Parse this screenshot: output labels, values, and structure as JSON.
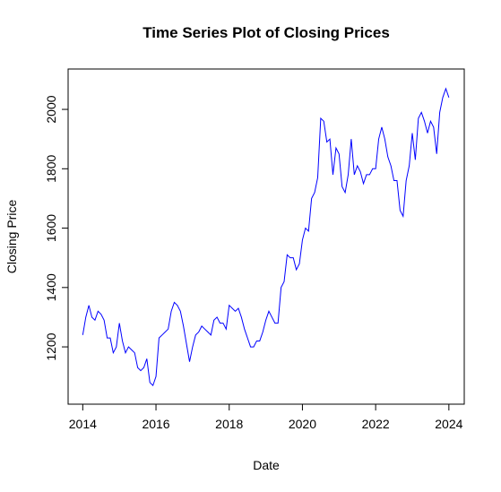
{
  "chart_data": {
    "type": "line",
    "title": "Time Series Plot of Closing Prices",
    "x_label": "Date",
    "y_label": "Closing Price",
    "x": [
      2014.0,
      2014.083,
      2014.167,
      2014.25,
      2014.333,
      2014.417,
      2014.5,
      2014.583,
      2014.667,
      2014.75,
      2014.833,
      2014.917,
      2015.0,
      2015.083,
      2015.167,
      2015.25,
      2015.333,
      2015.417,
      2015.5,
      2015.583,
      2015.667,
      2015.75,
      2015.833,
      2015.917,
      2016.0,
      2016.083,
      2016.167,
      2016.25,
      2016.333,
      2016.417,
      2016.5,
      2016.583,
      2016.667,
      2016.75,
      2016.833,
      2016.917,
      2017.0,
      2017.083,
      2017.167,
      2017.25,
      2017.333,
      2017.417,
      2017.5,
      2017.583,
      2017.667,
      2017.75,
      2017.833,
      2017.917,
      2018.0,
      2018.083,
      2018.167,
      2018.25,
      2018.333,
      2018.417,
      2018.5,
      2018.583,
      2018.667,
      2018.75,
      2018.833,
      2018.917,
      2019.0,
      2019.083,
      2019.167,
      2019.25,
      2019.333,
      2019.417,
      2019.5,
      2019.583,
      2019.667,
      2019.75,
      2019.833,
      2019.917,
      2020.0,
      2020.083,
      2020.167,
      2020.25,
      2020.333,
      2020.417,
      2020.5,
      2020.583,
      2020.667,
      2020.75,
      2020.833,
      2020.917,
      2021.0,
      2021.083,
      2021.167,
      2021.25,
      2021.333,
      2021.417,
      2021.5,
      2021.583,
      2021.667,
      2021.75,
      2021.833,
      2021.917,
      2022.0,
      2022.083,
      2022.167,
      2022.25,
      2022.333,
      2022.417,
      2022.5,
      2022.583,
      2022.667,
      2022.75,
      2022.833,
      2022.917,
      2023.0,
      2023.083,
      2023.167,
      2023.25,
      2023.333,
      2023.417,
      2023.5,
      2023.583,
      2023.667,
      2023.75,
      2023.833,
      2023.917,
      2024.0
    ],
    "series": [
      {
        "name": "Closing Price",
        "color": "#0000ff",
        "values": [
          1240,
          1300,
          1340,
          1300,
          1290,
          1320,
          1310,
          1290,
          1230,
          1230,
          1180,
          1200,
          1280,
          1220,
          1180,
          1200,
          1190,
          1180,
          1130,
          1120,
          1130,
          1160,
          1080,
          1070,
          1100,
          1230,
          1240,
          1250,
          1260,
          1320,
          1350,
          1340,
          1320,
          1270,
          1210,
          1150,
          1200,
          1240,
          1250,
          1270,
          1260,
          1250,
          1240,
          1290,
          1300,
          1280,
          1280,
          1260,
          1340,
          1330,
          1320,
          1330,
          1300,
          1260,
          1230,
          1200,
          1200,
          1220,
          1220,
          1250,
          1290,
          1320,
          1300,
          1280,
          1280,
          1400,
          1420,
          1510,
          1500,
          1500,
          1460,
          1480,
          1560,
          1600,
          1590,
          1700,
          1720,
          1770,
          1970,
          1960,
          1890,
          1900,
          1780,
          1870,
          1850,
          1740,
          1720,
          1780,
          1900,
          1780,
          1810,
          1790,
          1750,
          1780,
          1780,
          1800,
          1800,
          1900,
          1940,
          1900,
          1840,
          1810,
          1760,
          1760,
          1660,
          1640,
          1760,
          1810,
          1920,
          1830,
          1970,
          1990,
          1960,
          1920,
          1960,
          1940,
          1850,
          1990,
          2040,
          2070,
          2040
        ]
      }
    ],
    "xlim": [
      2013.6,
      2024.42
    ],
    "ylim": [
      1007,
      2136
    ],
    "xticks": [
      2014,
      2016,
      2018,
      2020,
      2022,
      2024
    ],
    "yticks": [
      1200,
      1400,
      1600,
      1800,
      2000
    ]
  }
}
